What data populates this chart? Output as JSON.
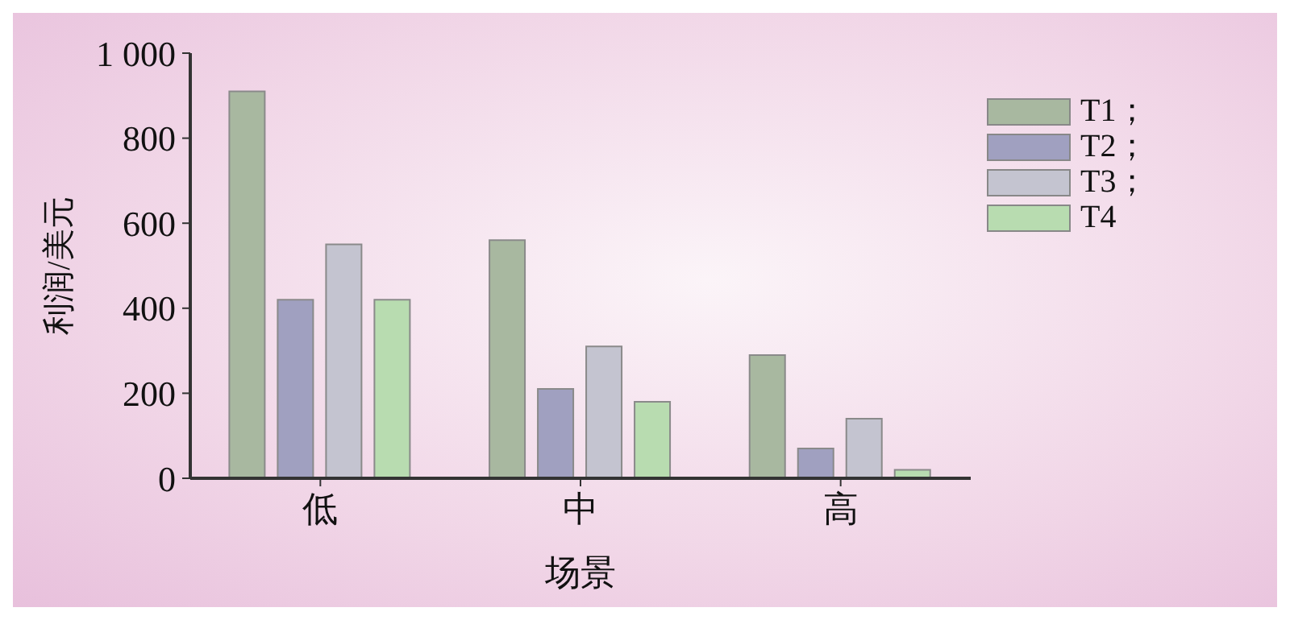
{
  "chart_data": {
    "type": "bar",
    "xlabel": "场景",
    "ylabel": "利润/美元",
    "categories": [
      "低",
      "中",
      "高"
    ],
    "series": [
      {
        "name": "T1；",
        "color": "#a8b8a0",
        "values": [
          910,
          560,
          290
        ]
      },
      {
        "name": "T2；",
        "color": "#a0a0c0",
        "values": [
          420,
          210,
          70
        ]
      },
      {
        "name": "T3；",
        "color": "#c4c4d0",
        "values": [
          550,
          310,
          140
        ]
      },
      {
        "name": "T4",
        "color": "#b8dcb0",
        "values": [
          420,
          180,
          20
        ]
      }
    ],
    "ylim": [
      0,
      1000
    ],
    "yticks": [
      0,
      200,
      400,
      600,
      800,
      {
        "value": 1000,
        "label": "1 000"
      }
    ],
    "grid": false,
    "legend": "top right"
  }
}
